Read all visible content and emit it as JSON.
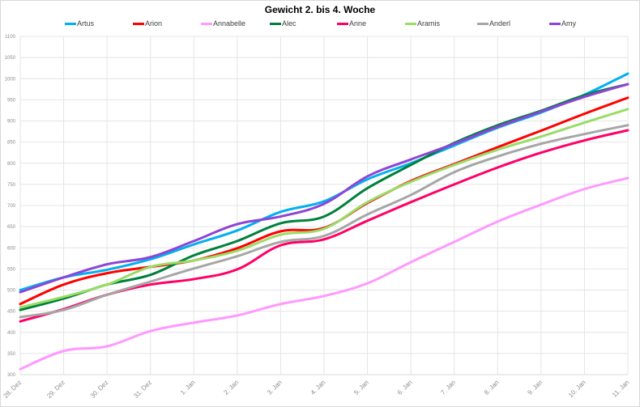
{
  "chart_data": {
    "type": "line",
    "title": "Gewicht  2. bis 4. Woche",
    "xlabel": "",
    "ylabel": "",
    "ylim": [
      300,
      1100
    ],
    "ytick_step": 50,
    "grid": true,
    "legend_position": "top",
    "categories": [
      "28. Dez",
      "29. Dez",
      "30. Dez",
      "31. Dez",
      "1. Jan",
      "2. Jan",
      "3. Jan",
      "4. Jan",
      "5. Jan",
      "6. Jan",
      "7. Jan",
      "8. Jan",
      "9. Jan",
      "10. Jan",
      "11. Jan"
    ],
    "series": [
      {
        "name": "Artus",
        "color": "#00b0f0",
        "values": [
          500,
          530,
          548,
          573,
          608,
          641,
          685,
          710,
          762,
          800,
          842,
          884,
          920,
          962,
          1012
        ]
      },
      {
        "name": "Arion",
        "color": "#ff0000",
        "values": [
          467,
          513,
          540,
          555,
          570,
          599,
          639,
          647,
          706,
          758,
          798,
          838,
          877,
          917,
          955
        ]
      },
      {
        "name": "Annabelle",
        "color": "#ff99ff",
        "values": [
          313,
          356,
          367,
          403,
          423,
          440,
          467,
          486,
          516,
          566,
          614,
          662,
          702,
          739,
          765
        ]
      },
      {
        "name": "Alec",
        "color": "#00803c",
        "values": [
          453,
          480,
          513,
          536,
          582,
          616,
          658,
          674,
          741,
          796,
          848,
          890,
          924,
          961,
          987
        ]
      },
      {
        "name": "Anne",
        "color": "#ff0066",
        "values": [
          426,
          455,
          489,
          513,
          526,
          549,
          606,
          620,
          664,
          708,
          750,
          790,
          825,
          854,
          878
        ]
      },
      {
        "name": "Aramis",
        "color": "#99dd66",
        "values": [
          459,
          484,
          513,
          555,
          570,
          593,
          631,
          645,
          708,
          756,
          796,
          832,
          863,
          896,
          928
        ]
      },
      {
        "name": "Anderl",
        "color": "#a6a6a6",
        "values": [
          436,
          453,
          489,
          520,
          551,
          580,
          614,
          628,
          679,
          725,
          779,
          816,
          846,
          869,
          890
        ]
      },
      {
        "name": "Amy",
        "color": "#8e44d6",
        "values": [
          495,
          530,
          561,
          578,
          616,
          656,
          674,
          704,
          769,
          809,
          846,
          886,
          922,
          957,
          987
        ]
      }
    ]
  }
}
